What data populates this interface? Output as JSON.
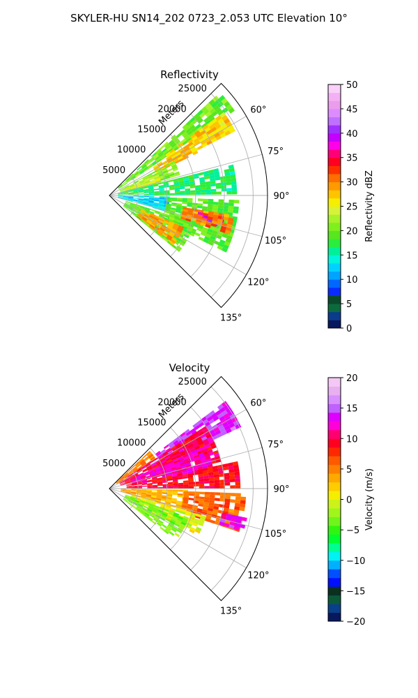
{
  "figure_title": "SKYLER-HU  SN14_202  0723_2.053 UTC Elevation 10°",
  "chart_data": [
    {
      "type": "heatmap",
      "subtype": "radar-ppi-sector",
      "title": "Reflectivity",
      "radial_axis_label": "Meters",
      "radial_ticks": [
        5000,
        10000,
        15000,
        20000,
        25000
      ],
      "radial_tick_labels": [
        "5000",
        "10000",
        "15000",
        "20000",
        "25000"
      ],
      "r_max": 27500,
      "azimuth_range_deg": [
        45,
        135
      ],
      "azimuth_ticks_deg": [
        60,
        75,
        90,
        105,
        120,
        135
      ],
      "azimuth_tick_labels": [
        "60°",
        "75°",
        "90°",
        "105°",
        "120°",
        "135°"
      ],
      "colorbar": {
        "label": "Reflectivity dBZ",
        "range": [
          0,
          50
        ],
        "ticks": [
          0,
          5,
          10,
          15,
          20,
          25,
          30,
          35,
          40,
          45,
          50
        ],
        "tick_labels": [
          "0",
          "5",
          "10",
          "15",
          "20",
          "25",
          "30",
          "35",
          "40",
          "45",
          "50"
        ]
      },
      "regions": [
        {
          "az": [
            47,
            55
          ],
          "r": [
            2000,
            26000
          ],
          "value": 20
        },
        {
          "az": [
            54,
            62
          ],
          "r": [
            12000,
            24000
          ],
          "value": 27
        },
        {
          "az": [
            57,
            64
          ],
          "r": [
            9000,
            17000
          ],
          "value": 28
        },
        {
          "az": [
            62,
            74
          ],
          "r": [
            2000,
            12000
          ],
          "value": 21
        },
        {
          "az": [
            66,
            76
          ],
          "r": [
            3000,
            9000
          ],
          "value": 24
        },
        {
          "az": [
            76,
            89
          ],
          "r": [
            1500,
            22000
          ],
          "value": 17
        },
        {
          "az": [
            91,
            106
          ],
          "r": [
            1500,
            10000
          ],
          "value": 13
        },
        {
          "az": [
            92,
            116
          ],
          "r": [
            10000,
            22000
          ],
          "value": 19
        },
        {
          "az": [
            100,
            106
          ],
          "r": [
            15000,
            20000
          ],
          "value": 38
        },
        {
          "az": [
            99,
            108
          ],
          "r": [
            13000,
            22000
          ],
          "value": 30
        },
        {
          "az": [
            108,
            128
          ],
          "r": [
            3000,
            15000
          ],
          "value": 20
        },
        {
          "az": [
            113,
            127
          ],
          "r": [
            6000,
            14000
          ],
          "value": 29
        }
      ]
    },
    {
      "type": "heatmap",
      "subtype": "radar-ppi-sector",
      "title": "Velocity",
      "radial_axis_label": "Meters",
      "radial_ticks": [
        5000,
        10000,
        15000,
        20000,
        25000
      ],
      "radial_tick_labels": [
        "5000",
        "10000",
        "15000",
        "20000",
        "25000"
      ],
      "r_max": 27500,
      "azimuth_range_deg": [
        45,
        135
      ],
      "azimuth_ticks_deg": [
        60,
        75,
        90,
        105,
        120,
        135
      ],
      "azimuth_tick_labels": [
        "60°",
        "75°",
        "90°",
        "105°",
        "120°",
        "135°"
      ],
      "colorbar": {
        "label": "Velocity (m/s)",
        "range": [
          -20,
          20
        ],
        "ticks": [
          -20,
          -15,
          -10,
          -5,
          0,
          5,
          10,
          15,
          20
        ],
        "tick_labels": [
          "−20",
          "−15",
          "−10",
          "−5",
          "0",
          "5",
          "10",
          "15",
          "20"
        ]
      },
      "regions": [
        {
          "az": [
            47,
            57
          ],
          "r": [
            1500,
            9000
          ],
          "value": 5
        },
        {
          "az": [
            53,
            64
          ],
          "r": [
            10000,
            25000
          ],
          "value": 14
        },
        {
          "az": [
            57,
            76
          ],
          "r": [
            2000,
            20000
          ],
          "value": 10
        },
        {
          "az": [
            66,
            80
          ],
          "r": [
            4000,
            18000
          ],
          "value": 12
        },
        {
          "az": [
            78,
            89
          ],
          "r": [
            3000,
            22000
          ],
          "value": 9
        },
        {
          "az": [
            91,
            106
          ],
          "r": [
            2000,
            13000
          ],
          "value": 3
        },
        {
          "az": [
            92,
            108
          ],
          "r": [
            13000,
            23000
          ],
          "value": 6
        },
        {
          "az": [
            102,
            108
          ],
          "r": [
            20000,
            24000
          ],
          "value": 13
        },
        {
          "az": [
            106,
            118
          ],
          "r": [
            4000,
            17000
          ],
          "value": 0
        },
        {
          "az": [
            110,
            128
          ],
          "r": [
            3000,
            14000
          ],
          "value": -3
        }
      ]
    }
  ]
}
